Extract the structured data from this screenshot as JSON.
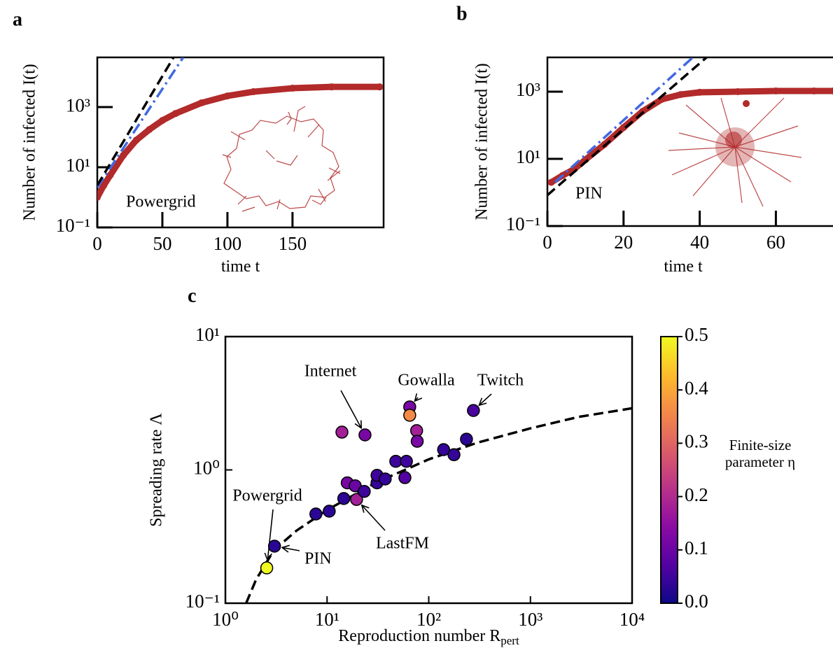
{
  "chart_data": [
    {
      "type": "line",
      "panel_label": "a",
      "ylabel": "Number of infected I(t)",
      "xlabel": "time t",
      "annotation": "Powergrid",
      "xscale": "linear",
      "yscale": "log",
      "xlim": [
        0,
        220
      ],
      "ylim": [
        0.1,
        45000
      ],
      "xticks": [
        0,
        50,
        100,
        150
      ],
      "yticks": [
        {
          "value": 0.1,
          "label": "10⁻¹"
        },
        {
          "value": 10,
          "label": "10¹"
        },
        {
          "value": 1000,
          "label": "10³"
        }
      ],
      "grid": false,
      "series": [
        {
          "style": "dots",
          "color": "#b22a2a",
          "x": [
            0,
            5,
            10,
            20,
            30,
            40,
            50,
            60,
            80,
            100,
            120,
            150,
            180,
            217
          ],
          "values": [
            1,
            2.5,
            5.5,
            25,
            80,
            180,
            360,
            610,
            1380,
            2350,
            3250,
            4250,
            4700,
            4700
          ]
        },
        {
          "style": "dashdot",
          "color": "#4169e1",
          "x": [
            0,
            66
          ],
          "values": [
            2.1,
            45000
          ]
        },
        {
          "style": "dashed",
          "color": "#000000",
          "x": [
            0,
            58.6
          ],
          "values": [
            2.5,
            45000
          ]
        }
      ]
    },
    {
      "type": "line",
      "panel_label": "b",
      "ylabel": "Number of infected I(t)",
      "xlabel": "time t",
      "annotation": "PIN",
      "xscale": "linear",
      "yscale": "log",
      "xlim": [
        0,
        75
      ],
      "ylim": [
        0.1,
        10500
      ],
      "xticks": [
        0,
        20,
        40,
        60
      ],
      "yticks": [
        {
          "value": 0.1,
          "label": "10⁻¹"
        },
        {
          "value": 10,
          "label": "10¹"
        },
        {
          "value": 1000,
          "label": "10³"
        }
      ],
      "grid": false,
      "series": [
        {
          "style": "dots",
          "color": "#b22a2a",
          "x": [
            1,
            4,
            7,
            10,
            15,
            20,
            25,
            30,
            35,
            40,
            50,
            60,
            70,
            75
          ],
          "values": [
            2,
            3.2,
            4.9,
            9.5,
            27,
            86,
            260,
            590,
            820,
            960,
            1000,
            1050,
            1050,
            1050
          ]
        },
        {
          "style": "dashdot",
          "color": "#4169e1",
          "x": [
            2,
            38.2
          ],
          "values": [
            2,
            10500
          ]
        },
        {
          "style": "dashed",
          "color": "#000000",
          "x": [
            0,
            41.8
          ],
          "values": [
            0.83,
            10500
          ]
        }
      ]
    },
    {
      "type": "scatter",
      "panel_label": "c",
      "ylabel": "Spreading rate Λ",
      "xlabel": "Reproduction number R",
      "xlabel_sub": "pert",
      "xscale": "log",
      "yscale": "log",
      "xlim": [
        1,
        10000
      ],
      "ylim": [
        0.1,
        10
      ],
      "xticks": [
        {
          "value": 1,
          "label": "10⁰"
        },
        {
          "value": 10,
          "label": "10¹"
        },
        {
          "value": 100,
          "label": "10²"
        },
        {
          "value": 1000,
          "label": "10³"
        },
        {
          "value": 10000,
          "label": "10⁴"
        }
      ],
      "yticks": [
        {
          "value": 0.1,
          "label": "10⁻¹"
        },
        {
          "value": 1,
          "label": "10⁰"
        },
        {
          "value": 10,
          "label": "10¹"
        }
      ],
      "grid": false,
      "series": [
        {
          "style": "circles",
          "x": [
            2.55,
            3.04,
            7.76,
            10.5,
            14.6,
            15.8,
            18.9,
            19.5,
            23.2,
            31,
            31,
            37.3,
            47.4,
            58.3,
            60.3,
            140,
            177,
            235,
            275,
            14,
            23.6,
            65,
            65,
            76,
            77
          ],
          "values": [
            0.184,
            0.268,
            0.467,
            0.49,
            0.61,
            0.8,
            0.76,
            0.6,
            0.69,
            0.8,
            0.91,
            0.855,
            1.16,
            0.875,
            1.16,
            1.42,
            1.3,
            1.7,
            2.79,
            1.92,
            1.83,
            2.97,
            2.57,
            1.97,
            1.64
          ],
          "color_values": [
            0.5,
            0.03,
            0.03,
            0.03,
            0.03,
            0.12,
            0.1,
            0.18,
            0.05,
            0.04,
            0.05,
            0.04,
            0.05,
            0.07,
            0.05,
            0.04,
            0.04,
            0.03,
            0.06,
            0.18,
            0.12,
            0.12,
            0.36,
            0.18,
            0.12
          ],
          "point_labels": [
            "Powergrid",
            "PIN",
            null,
            null,
            null,
            null,
            null,
            "LastFM",
            null,
            null,
            null,
            null,
            null,
            null,
            null,
            null,
            null,
            null,
            "Twitch",
            null,
            "Internet",
            "Gowalla",
            null,
            null,
            null
          ]
        },
        {
          "style": "dashed",
          "color": "#000000",
          "x": [
            1.6,
            2,
            3,
            5,
            10,
            30,
            100,
            300,
            1000,
            3000,
            10000
          ],
          "values": [
            0.1,
            0.15,
            0.25,
            0.35,
            0.5,
            0.8,
            1.2,
            1.6,
            2.05,
            2.5,
            2.9
          ]
        }
      ],
      "colorbar": {
        "cmap": "plasma",
        "lim": [
          0,
          0.5
        ],
        "ticks": [
          {
            "value": 0,
            "label": "0.0"
          },
          0.1,
          0.2,
          0.3,
          0.4,
          0.5
        ],
        "label": [
          "Finite-size",
          "parameter η"
        ]
      }
    }
  ]
}
